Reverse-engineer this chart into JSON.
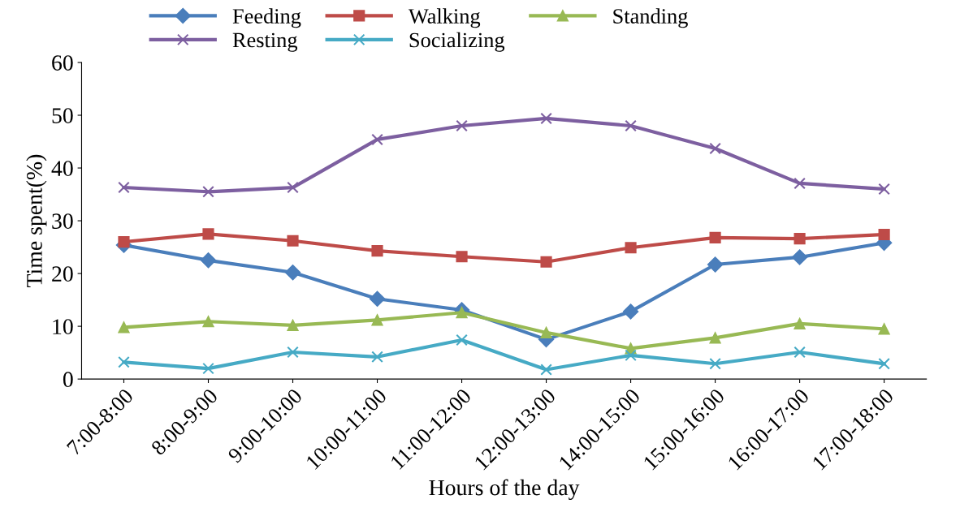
{
  "chart_data": {
    "type": "line",
    "xlabel": "Hours of the day",
    "ylabel": "Time spent(%)",
    "categories": [
      "7:00-8:00",
      "8:00-9:00",
      "9:00-10:00",
      "10:00-11:00",
      "11:00-12:00",
      "12:00-13:00",
      "14:00-15:00",
      "15:00-16:00",
      "16:00-17:00",
      "17:00-18:00"
    ],
    "series": [
      {
        "name": "Feeding",
        "color": "#4a7ebb",
        "marker": "diamond",
        "values": [
          25.4,
          22.5,
          20.2,
          15.2,
          13.1,
          7.5,
          12.8,
          21.7,
          23.1,
          25.8
        ]
      },
      {
        "name": "Walking",
        "color": "#be4b48",
        "marker": "square",
        "values": [
          26.0,
          27.5,
          26.2,
          24.3,
          23.2,
          22.2,
          24.9,
          26.8,
          26.6,
          27.4
        ]
      },
      {
        "name": "Standing",
        "color": "#98b954",
        "marker": "triangle",
        "values": [
          9.8,
          10.9,
          10.2,
          11.2,
          12.6,
          8.8,
          5.8,
          7.8,
          10.5,
          9.5
        ]
      },
      {
        "name": "Resting",
        "color": "#7d5fa0",
        "marker": "cross",
        "values": [
          36.3,
          35.5,
          36.3,
          45.4,
          48.0,
          49.4,
          48.0,
          43.7,
          37.1,
          36.0
        ]
      },
      {
        "name": "Socializing",
        "color": "#46aac5",
        "marker": "cross",
        "values": [
          3.2,
          2.0,
          5.1,
          4.2,
          7.4,
          1.8,
          4.5,
          2.9,
          5.1,
          2.9
        ]
      }
    ],
    "ylim": [
      0,
      60
    ],
    "yticks": [
      0,
      10,
      20,
      30,
      40,
      50,
      60
    ],
    "grid": false,
    "legend": "top",
    "line_style": "solid"
  }
}
